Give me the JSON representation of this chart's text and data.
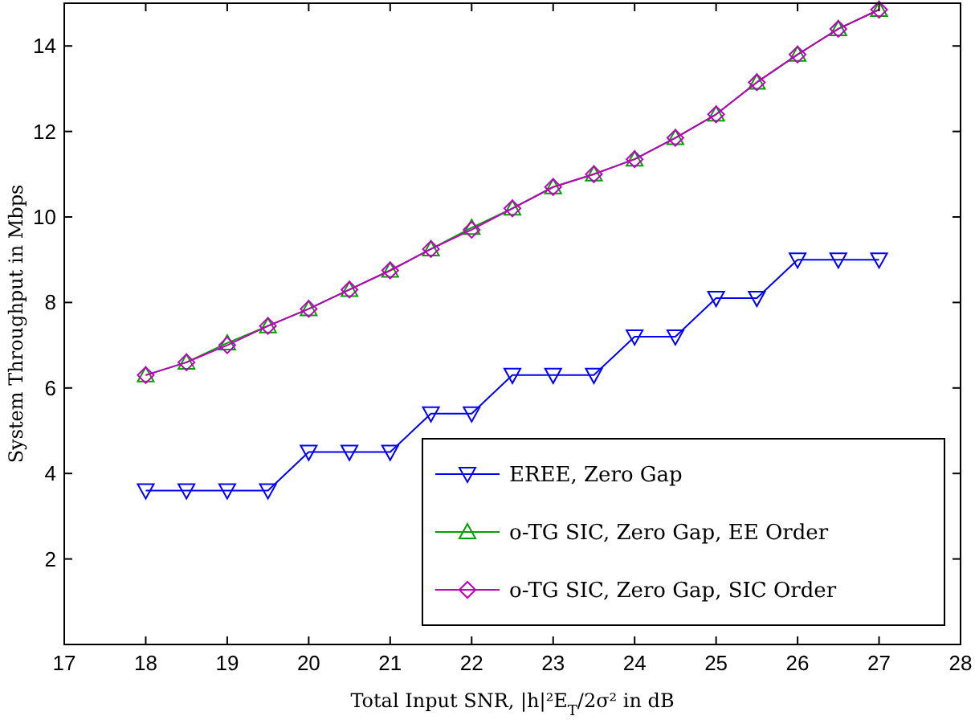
{
  "chart_data": {
    "type": "line",
    "xlabel": "Total Input SNR, |h|²E$_{T}$/2σ² in dB",
    "ylabel": "System Throughput in Mbps",
    "x": [
      18,
      18.5,
      19,
      19.5,
      20,
      20.5,
      21,
      21.5,
      22,
      22.5,
      23,
      23.5,
      24,
      24.5,
      25,
      25.5,
      26,
      26.5,
      27
    ],
    "xlim": [
      17,
      28
    ],
    "xticks": [
      17,
      18,
      19,
      20,
      21,
      22,
      23,
      24,
      25,
      26,
      27,
      28
    ],
    "ylim": [
      0,
      15
    ],
    "yticks": [
      {
        "value": 0,
        "label": null
      },
      2,
      4,
      6,
      8,
      10,
      12,
      14
    ],
    "grid": false,
    "legend": "bottom right",
    "series": [
      {
        "name": "EREE, Zero Gap",
        "color": "#0000ff",
        "marker": "triangle-down",
        "values": [
          3.6,
          3.6,
          3.6,
          3.6,
          4.5,
          4.5,
          4.5,
          5.4,
          5.4,
          6.3,
          6.3,
          6.3,
          7.2,
          7.2,
          8.1,
          8.1,
          9,
          9,
          9
        ]
      },
      {
        "name": "o-TG SIC, Zero Gap, EE Order",
        "color": "#00a000",
        "marker": "triangle",
        "values": [
          6.3,
          6.6,
          7.05,
          7.45,
          7.85,
          8.3,
          8.75,
          9.25,
          9.75,
          10.2,
          10.7,
          11.0,
          11.35,
          11.85,
          12.4,
          13.15,
          13.8,
          14.4,
          14.85
        ]
      },
      {
        "name": "o-TG SIC, Zero Gap, SIC Order",
        "color": "#c000c0",
        "marker": "diamond",
        "values": [
          6.3,
          6.6,
          7.0,
          7.45,
          7.85,
          8.3,
          8.75,
          9.25,
          9.7,
          10.2,
          10.7,
          11.0,
          11.35,
          11.85,
          12.4,
          13.15,
          13.8,
          14.4,
          14.85
        ]
      }
    ]
  }
}
